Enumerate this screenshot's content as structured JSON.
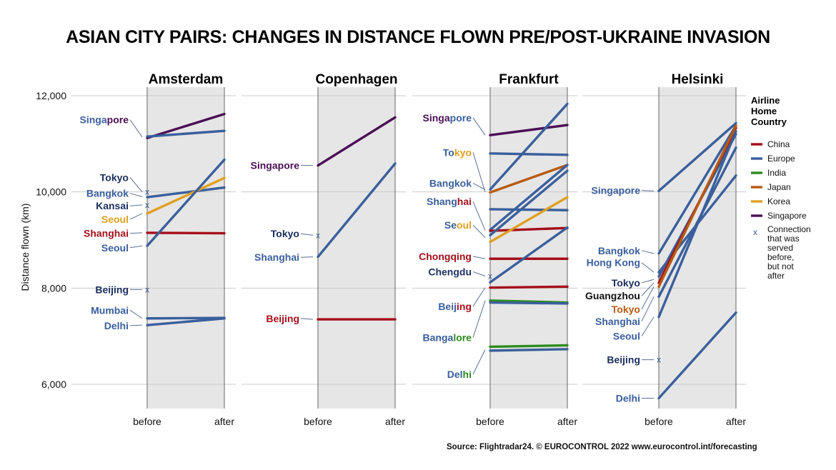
{
  "title": "ASIAN CITY PAIRS: CHANGES IN DISTANCE FLOWN PRE/POST-UKRAINE INVASION",
  "source": "Source: Flightradar24. © EUROCONTROL 2022 www.eurocontrol.int/forecasting",
  "colors": {
    "China": "#a50f1a",
    "Europe": "#3a5f9c",
    "India": "#2e8b1e",
    "Japan": "#b85a10",
    "Korea": "#e0a020",
    "Singapore": "#4b0f55",
    "panel_fill": "#e6e6e6",
    "grid": "#c8c8c8"
  },
  "chart_data": {
    "type": "line",
    "ylabel": "Distance flown (km)",
    "ylim": [
      5500,
      12100
    ],
    "yticks": [
      6000,
      8000,
      10000,
      12000
    ],
    "ytick_labels": [
      "6,000",
      "8,000",
      "10,000",
      "12,000"
    ],
    "x_categories": [
      "before",
      "after"
    ],
    "legend": {
      "title_lines": [
        "Airline",
        "Home",
        "Country"
      ],
      "entries": [
        "China",
        "Europe",
        "India",
        "Japan",
        "Korea",
        "Singapore"
      ],
      "cross_lines": [
        "Connection",
        "that was",
        "served",
        "before,",
        "but not",
        "after"
      ],
      "cross_symbol": "x",
      "placement": "right"
    },
    "panels": [
      {
        "name": "Amsterdam",
        "series": [
          {
            "country": "Singapore",
            "before": 11120,
            "after": 11620
          },
          {
            "country": "Europe",
            "before": 11150,
            "after": 11270
          },
          {
            "country": "Europe",
            "before": 9890,
            "after": 10090
          },
          {
            "country": "Korea",
            "before": 9550,
            "after": 10290
          },
          {
            "country": "China",
            "before": 9150,
            "after": 9140
          },
          {
            "country": "Europe",
            "before": 8880,
            "after": 10670
          },
          {
            "country": "Europe",
            "before": 7370,
            "after": 7380
          },
          {
            "country": "Europe",
            "before": 7230,
            "after": 7370
          }
        ],
        "crosses": [
          {
            "country": "Europe",
            "before": 10000
          },
          {
            "country": "Europe",
            "before": 9730
          },
          {
            "country": "Europe",
            "before": 7970
          }
        ],
        "labels": [
          {
            "segments": [
              {
                "text": "Singa",
                "color": "Europe"
              },
              {
                "text": "pore",
                "color": "Singapore"
              }
            ],
            "y": 11500,
            "target": 11140
          },
          {
            "segments": [
              {
                "text": "Tokyo",
                "color": "#1b2f5e"
              }
            ],
            "y": 10300,
            "target": 10000
          },
          {
            "segments": [
              {
                "text": "Bangkok",
                "color": "Europe"
              }
            ],
            "y": 9970,
            "target": 9900
          },
          {
            "segments": [
              {
                "text": "Kansai",
                "color": "#1b2f5e"
              }
            ],
            "y": 9710,
            "target": 9730
          },
          {
            "segments": [
              {
                "text": "Seoul",
                "color": "Korea"
              }
            ],
            "y": 9430,
            "target": 9550
          },
          {
            "segments": [
              {
                "text": "Shanghai",
                "color": "China"
              }
            ],
            "y": 9140,
            "target": 9150
          },
          {
            "segments": [
              {
                "text": "Seoul",
                "color": "Europe"
              }
            ],
            "y": 8840,
            "target": 8880
          },
          {
            "segments": [
              {
                "text": "Beijing",
                "color": "#1b2f5e"
              }
            ],
            "y": 7970,
            "target": 7970
          },
          {
            "segments": [
              {
                "text": "Mumbai",
                "color": "Europe"
              }
            ],
            "y": 7540,
            "target": 7370
          },
          {
            "segments": [
              {
                "text": "Delhi",
                "color": "Europe"
              }
            ],
            "y": 7220,
            "target": 7230
          }
        ]
      },
      {
        "name": "Copenhagen",
        "series": [
          {
            "country": "Singapore",
            "before": 10550,
            "after": 11550
          },
          {
            "country": "Europe",
            "before": 8650,
            "after": 10590
          },
          {
            "country": "China",
            "before": 7350,
            "after": 7350
          }
        ],
        "crosses": [
          {
            "country": "Europe",
            "before": 9100
          }
        ],
        "labels": [
          {
            "segments": [
              {
                "text": "Singapore",
                "color": "Singapore"
              }
            ],
            "y": 10550,
            "target": 10550
          },
          {
            "segments": [
              {
                "text": "Tokyo",
                "color": "#1b2f5e"
              }
            ],
            "y": 9130,
            "target": 9100
          },
          {
            "segments": [
              {
                "text": "Shanghai",
                "color": "Europe"
              }
            ],
            "y": 8640,
            "target": 8650
          },
          {
            "segments": [
              {
                "text": "Beijing",
                "color": "China"
              }
            ],
            "y": 7370,
            "target": 7350
          }
        ]
      },
      {
        "name": "Frankfurt",
        "series": [
          {
            "country": "Singapore",
            "before": 11180,
            "after": 11390
          },
          {
            "country": "Europe",
            "before": 10800,
            "after": 10770
          },
          {
            "country": "Europe",
            "before": 10050,
            "after": 11830
          },
          {
            "country": "Japan",
            "before": 9990,
            "after": 10560
          },
          {
            "country": "Europe",
            "before": 9640,
            "after": 9620
          },
          {
            "country": "Europe",
            "before": 9210,
            "after": 10560
          },
          {
            "country": "China",
            "before": 9190,
            "after": 9250
          },
          {
            "country": "Europe",
            "before": 9100,
            "after": 10440
          },
          {
            "country": "Korea",
            "before": 8960,
            "after": 9890
          },
          {
            "country": "China",
            "before": 8610,
            "after": 8610
          },
          {
            "country": "Europe",
            "before": 8120,
            "after": 9260
          },
          {
            "country": "China",
            "before": 8010,
            "after": 8030
          },
          {
            "country": "India",
            "before": 7740,
            "after": 7700
          },
          {
            "country": "Europe",
            "before": 7700,
            "after": 7680
          },
          {
            "country": "India",
            "before": 6780,
            "after": 6810
          },
          {
            "country": "Europe",
            "before": 6700,
            "after": 6730
          }
        ],
        "crosses": [
          {
            "country": "Europe",
            "before": 8250
          }
        ],
        "labels": [
          {
            "segments": [
              {
                "text": "Singa",
                "color": "Singapore"
              },
              {
                "text": "pore",
                "color": "Europe"
              }
            ],
            "y": 11540,
            "target": 11180
          },
          {
            "segments": [
              {
                "text": "To",
                "color": "Europe"
              },
              {
                "text": "kyo",
                "color": "Korea"
              }
            ],
            "y": 10820,
            "target": 10000
          },
          {
            "segments": [
              {
                "text": "Bangkok",
                "color": "Europe"
              }
            ],
            "y": 10180,
            "target": 10050
          },
          {
            "segments": [
              {
                "text": "Shang",
                "color": "Europe"
              },
              {
                "text": "hai",
                "color": "China"
              }
            ],
            "y": 9800,
            "target": 9200
          },
          {
            "segments": [
              {
                "text": "Se",
                "color": "Europe"
              },
              {
                "text": "oul",
                "color": "Korea"
              }
            ],
            "y": 9310,
            "target": 9050
          },
          {
            "segments": [
              {
                "text": "Chongqing",
                "color": "China"
              }
            ],
            "y": 8660,
            "target": 8610
          },
          {
            "segments": [
              {
                "text": "Chengdu",
                "color": "#1b2f5e"
              }
            ],
            "y": 8340,
            "target": 8250
          },
          {
            "segments": [
              {
                "text": "Beij",
                "color": "Europe"
              },
              {
                "text": "ing",
                "color": "China"
              }
            ],
            "y": 7620,
            "target": 8010
          },
          {
            "segments": [
              {
                "text": "Banga",
                "color": "Europe"
              },
              {
                "text": "lore",
                "color": "India"
              }
            ],
            "y": 6970,
            "target": 7740
          },
          {
            "segments": [
              {
                "text": "Del",
                "color": "Europe"
              },
              {
                "text": "hi",
                "color": "India"
              }
            ],
            "y": 6210,
            "target": 6720
          }
        ]
      },
      {
        "name": "Helsinki",
        "series": [
          {
            "country": "Europe",
            "before": 10020,
            "after": 11430
          },
          {
            "country": "Europe",
            "before": 8720,
            "after": 11380
          },
          {
            "country": "Europe",
            "before": 8330,
            "after": 10340
          },
          {
            "country": "Europe",
            "before": 8240,
            "after": 11200
          },
          {
            "country": "China",
            "before": 8110,
            "after": 11330
          },
          {
            "country": "Japan",
            "before": 8030,
            "after": 11380
          },
          {
            "country": "Europe",
            "before": 7820,
            "after": 10920
          },
          {
            "country": "Europe",
            "before": 7400,
            "after": 11260
          },
          {
            "country": "Europe",
            "before": 5710,
            "after": 7490
          }
        ],
        "crosses": [
          {
            "country": "Europe",
            "before": 6510
          }
        ],
        "labels": [
          {
            "segments": [
              {
                "text": "Singapore",
                "color": "Europe"
              }
            ],
            "y": 10030,
            "target": 10020
          },
          {
            "segments": [
              {
                "text": "Bangkok",
                "color": "Europe"
              }
            ],
            "y": 8780,
            "target": 8720
          },
          {
            "segments": [
              {
                "text": "Hong Kong",
                "color": "Europe"
              }
            ],
            "y": 8530,
            "target": 8330
          },
          {
            "segments": [
              {
                "text": "Tokyo",
                "color": "#1b2f5e"
              }
            ],
            "y": 8110,
            "target": 8180
          },
          {
            "segments": [
              {
                "text": "Guangzhou",
                "color": "#111111"
              }
            ],
            "y": 7840,
            "target": 8110
          },
          {
            "segments": [
              {
                "text": "Tokyo",
                "color": "Japan"
              }
            ],
            "y": 7560,
            "target": 8030
          },
          {
            "segments": [
              {
                "text": "Shanghai",
                "color": "Europe"
              }
            ],
            "y": 7310,
            "target": 7820
          },
          {
            "segments": [
              {
                "text": "Seoul",
                "color": "Europe"
              }
            ],
            "y": 7000,
            "target": 7400
          },
          {
            "segments": [
              {
                "text": "Beijing",
                "color": "#1b2f5e"
              }
            ],
            "y": 6510,
            "target": 6510
          },
          {
            "segments": [
              {
                "text": "Delhi",
                "color": "Europe"
              }
            ],
            "y": 5710,
            "target": 5710
          }
        ]
      }
    ]
  }
}
